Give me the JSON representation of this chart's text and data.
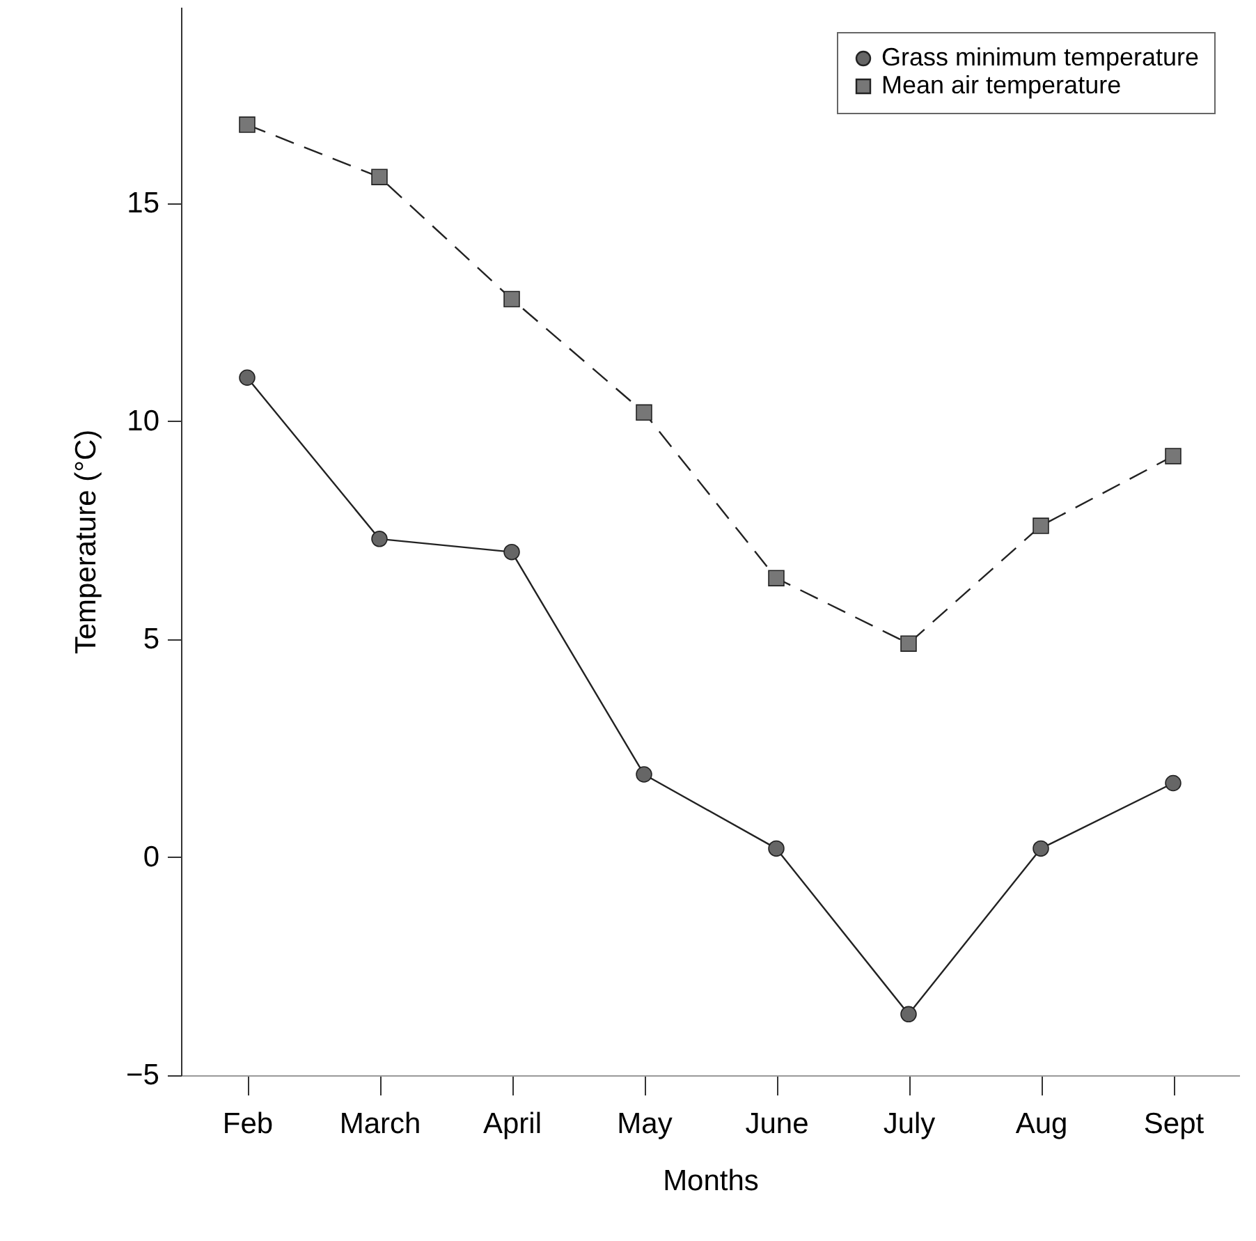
{
  "chart_data": {
    "type": "line",
    "xlabel": "Months",
    "ylabel": "Temperature (°C)",
    "categories": [
      "Feb",
      "March",
      "April",
      "May",
      "June",
      "July",
      "Aug",
      "Sept"
    ],
    "series": [
      {
        "name": "Grass minimum temperature",
        "color": "#666666",
        "marker": "circle",
        "line_style": "solid",
        "values": [
          11.0,
          7.3,
          7.0,
          1.9,
          0.2,
          -3.6,
          0.2,
          1.7
        ]
      },
      {
        "name": "Mean air temperature",
        "color": "#777777",
        "marker": "square",
        "line_style": "dashed",
        "values": [
          16.8,
          15.6,
          12.8,
          10.2,
          6.4,
          4.9,
          7.6,
          9.2
        ]
      }
    ],
    "ylim": [
      -5,
      19.5
    ],
    "yticks": [
      -5,
      0,
      5,
      10,
      15
    ],
    "grid": false,
    "legend": "top right"
  }
}
